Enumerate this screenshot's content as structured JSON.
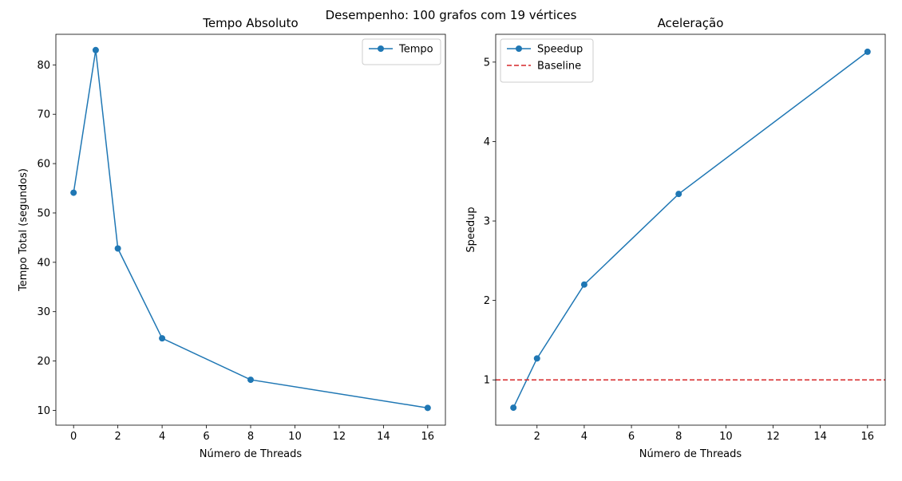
{
  "suptitle": "Desempenho: 100 grafos com 19 vértices",
  "colors": {
    "line": "#1f77b4",
    "baseline": "#d62728",
    "legend_border": "#cccccc"
  },
  "chart_data": [
    {
      "type": "line",
      "title": "Tempo Absoluto",
      "xlabel": "Número de Threads",
      "ylabel": "Tempo Total (segundos)",
      "xlim": [
        -0.8,
        16.8
      ],
      "ylim": [
        7.0,
        86.2
      ],
      "xticks": [
        0,
        2,
        4,
        6,
        8,
        10,
        12,
        14,
        16
      ],
      "yticks": [
        10,
        20,
        30,
        40,
        50,
        60,
        70,
        80
      ],
      "grid": false,
      "legend_position": "upper right",
      "series": [
        {
          "name": "Tempo",
          "marker": "circle",
          "style": "solid",
          "x": [
            0,
            1,
            2,
            4,
            8,
            16
          ],
          "y": [
            54.1,
            83.0,
            42.8,
            24.6,
            16.2,
            10.5
          ]
        }
      ]
    },
    {
      "type": "line",
      "title": "Aceleração",
      "xlabel": "Número de Threads",
      "ylabel": "Speedup",
      "xlim": [
        0.25,
        16.75
      ],
      "ylim": [
        0.43,
        5.35
      ],
      "xticks": [
        2,
        4,
        6,
        8,
        10,
        12,
        14,
        16
      ],
      "yticks": [
        1,
        2,
        3,
        4,
        5
      ],
      "grid": false,
      "legend_position": "upper left",
      "series": [
        {
          "name": "Speedup",
          "marker": "circle",
          "style": "solid",
          "x": [
            1,
            2,
            4,
            8,
            16
          ],
          "y": [
            0.65,
            1.27,
            2.2,
            3.34,
            5.13
          ]
        },
        {
          "name": "Baseline",
          "marker": "none",
          "style": "dashed",
          "hline": 1
        }
      ]
    }
  ]
}
